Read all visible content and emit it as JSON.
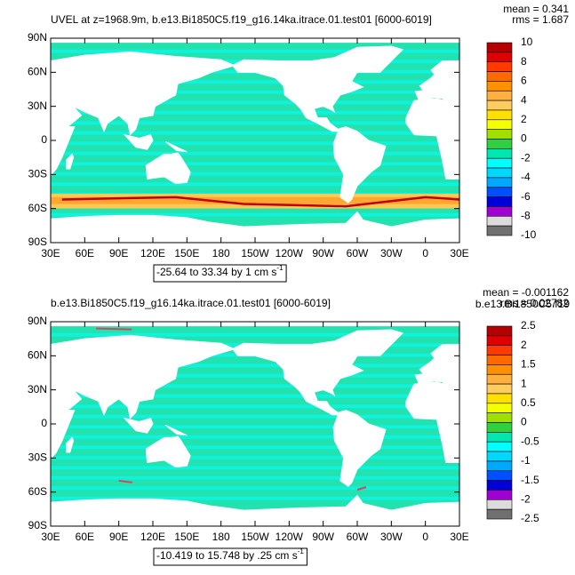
{
  "lonlim": [
    30,
    390
  ],
  "latlim": [
    -90,
    90
  ],
  "lat_ticks": [
    {
      "value": 90,
      "label": "90N"
    },
    {
      "value": 60,
      "label": "60N"
    },
    {
      "value": 30,
      "label": "30N"
    },
    {
      "value": 0,
      "label": "0"
    },
    {
      "value": -30,
      "label": "30S"
    },
    {
      "value": -60,
      "label": "60S"
    },
    {
      "value": -90,
      "label": "90S"
    }
  ],
  "lon_ticks": [
    {
      "value": 30,
      "label": "30E"
    },
    {
      "value": 60,
      "label": "60E"
    },
    {
      "value": 90,
      "label": "90E"
    },
    {
      "value": 120,
      "label": "120E"
    },
    {
      "value": 150,
      "label": "150E"
    },
    {
      "value": 180,
      "label": "180"
    },
    {
      "value": 210,
      "label": "150W"
    },
    {
      "value": 240,
      "label": "120W"
    },
    {
      "value": 270,
      "label": "90W"
    },
    {
      "value": 300,
      "label": "60W"
    },
    {
      "value": 330,
      "label": "30W"
    },
    {
      "value": 360,
      "label": "0"
    },
    {
      "value": 390,
      "label": "30E"
    }
  ],
  "panels": [
    {
      "title": "UVEL at z=1968.9m, b.e13.Bi1850C5.f19_g16.14ka.itrace.01.test01 [6000-6019]",
      "mean": "mean = 0.341",
      "rms": "rms = 1.687",
      "contour_info": "-25.64 to 33.34 by 1 cm s",
      "unit_exponent": "-1",
      "colorbar": {
        "labels": [
          10,
          8,
          6,
          4,
          2,
          0,
          -2,
          -4,
          -6,
          -8,
          -10
        ],
        "colors": [
          "#b40000",
          "#e00000",
          "#ff3a00",
          "#ff6a00",
          "#ff9000",
          "#ffb040",
          "#ffcc60",
          "#ffe000",
          "#f4ff00",
          "#a0e000",
          "#30d040",
          "#00e8b0",
          "#00ffff",
          "#00d8ff",
          "#00a8ff",
          "#0050ff",
          "#0000d8",
          "#a000d0",
          "#dcdcdc",
          "#707070"
        ]
      }
    },
    {
      "title": "b.e13.Bi1850C5.f19_g16.14ka.itrace.01.test01 [6000-6019]",
      "mean": "mean = -0.001162",
      "rms": "rms = 0.02782",
      "overlap_label": "b.e13.Bi1850C5.f19",
      "contour_info": "-10.419 to 15.748 by .25 cm s",
      "unit_exponent": "-1",
      "colorbar": {
        "labels": [
          2.5,
          2,
          1.5,
          1,
          0.5,
          0,
          -0.5,
          -1,
          -1.5,
          -2,
          -2.5
        ],
        "colors": [
          "#b40000",
          "#e00000",
          "#ff3a00",
          "#ff6a00",
          "#ff9000",
          "#ffb040",
          "#ffcc60",
          "#ffe000",
          "#f4ff00",
          "#a0e000",
          "#30d040",
          "#00e8b0",
          "#00ffff",
          "#00d8ff",
          "#00a8ff",
          "#0050ff",
          "#0000d8",
          "#a000d0",
          "#dcdcdc",
          "#707070"
        ]
      }
    }
  ]
}
